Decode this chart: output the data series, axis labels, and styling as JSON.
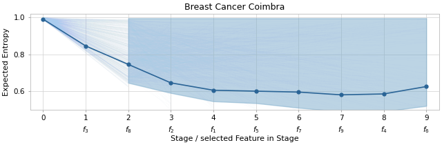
{
  "title": "Breast Cancer Coimbra",
  "xlabel": "Stage / selected Feature in Stage",
  "ylabel": "Expected Entropy",
  "main_line_x": [
    0,
    1,
    2,
    3,
    4,
    5,
    6,
    7,
    8,
    9
  ],
  "main_line_y": [
    0.99,
    0.845,
    0.745,
    0.645,
    0.605,
    0.6,
    0.595,
    0.58,
    0.585,
    0.625
  ],
  "ylim": [
    0.5,
    1.02
  ],
  "xlim": [
    -0.3,
    9.3
  ],
  "feature_names": [
    "",
    "$f_3$",
    "$f_8$",
    "$f_2$",
    "$f_1$",
    "$f_5$",
    "$f_7$",
    "$f_9$",
    "$f_4$",
    "$f_6$"
  ],
  "fill_color": "#7aaaca",
  "fill_alpha": 0.5,
  "line_color": "#2a6496",
  "line_width": 1.2,
  "marker_size": 3.5,
  "fan_color": "#aaccee",
  "fan_alpha": 0.07,
  "fan_linewidth": 0.25,
  "num_fan_lines": 800,
  "yticks": [
    0.6,
    0.8,
    1.0
  ],
  "grid_color": "#d0d0d0",
  "figwidth": 6.4,
  "figheight": 2.1,
  "dpi": 100,
  "fill_lower_x": [
    2,
    3,
    4,
    5,
    6,
    7,
    8,
    9
  ],
  "fill_lower_y": [
    0.645,
    0.59,
    0.545,
    0.535,
    0.51,
    0.49,
    0.49,
    0.52
  ],
  "fill_upper": 0.995
}
